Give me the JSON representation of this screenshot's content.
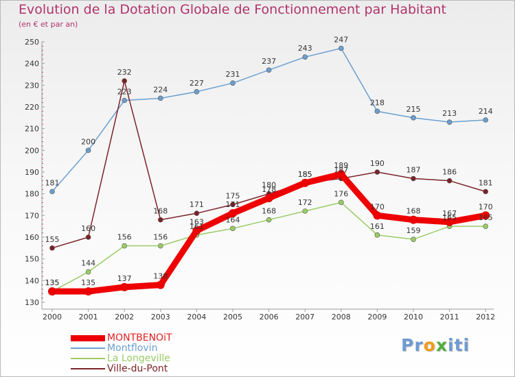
{
  "title": "Evolution de la Dotation Globale de Fonctionnement par Habitant",
  "subtitle": "(en € et par an)",
  "logo": {
    "text": "Proxiti",
    "letters": [
      "P",
      "r",
      "o",
      "x",
      "i",
      "t",
      "i"
    ],
    "colors": [
      "#6f9ad1",
      "#6f9ad1",
      "#f29a1b",
      "#4fae3a",
      "#6f9ad1",
      "#6f9ad1",
      "#6f9ad1"
    ]
  },
  "chart_data": {
    "type": "line",
    "title": "Evolution de la Dotation Globale de Fonctionnement par Habitant",
    "subtitle": "(en € et par an)",
    "xlabel": "",
    "ylabel": "",
    "x": [
      "2000",
      "2001",
      "2002",
      "2003",
      "2004",
      "2005",
      "2006",
      "2007",
      "2008",
      "2009",
      "2010",
      "2011",
      "2012"
    ],
    "ylim": [
      130,
      250
    ],
    "yticks": [
      130,
      140,
      150,
      160,
      170,
      180,
      190,
      200,
      210,
      220,
      230,
      240,
      250
    ],
    "grid": false,
    "legend_position": "bottom",
    "series": [
      {
        "name": "MONTBENOiT",
        "color": "#ee0000",
        "width": 9,
        "values": [
          135,
          135,
          137,
          138,
          163,
          171,
          178,
          185,
          189,
          170,
          168,
          167,
          170
        ]
      },
      {
        "name": "Montflovin",
        "color": "#6a9fd0",
        "width": 1.5,
        "values": [
          181,
          200,
          223,
          224,
          227,
          231,
          237,
          243,
          247,
          218,
          215,
          213,
          214
        ]
      },
      {
        "name": "La Longeville",
        "color": "#99cc66",
        "width": 1.5,
        "values": [
          135,
          144,
          156,
          156,
          161,
          164,
          168,
          172,
          176,
          161,
          159,
          165,
          165
        ]
      },
      {
        "name": "Ville-du-Pont",
        "color": "#7a2228",
        "width": 1.5,
        "values": [
          155,
          160,
          232,
          168,
          171,
          175,
          180,
          185,
          187,
          190,
          187,
          186,
          181
        ]
      }
    ]
  }
}
